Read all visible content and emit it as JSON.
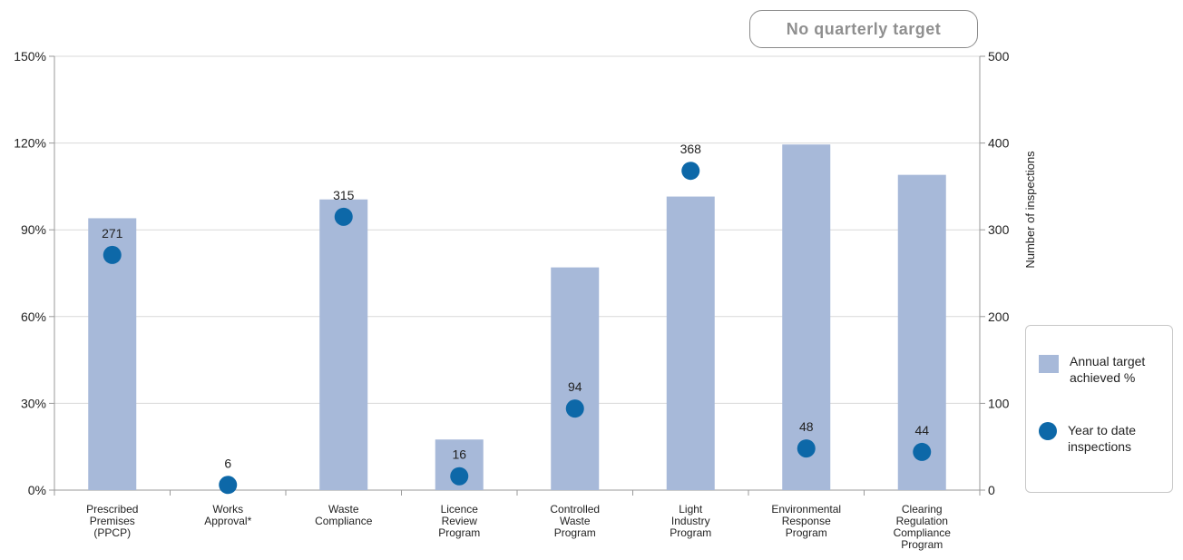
{
  "badge": {
    "label": "No quarterly target"
  },
  "legend": {
    "bar_label": "Annual target achieved %",
    "dot_label": "Year to date inspections"
  },
  "colors": {
    "bar": "#a7b9d9",
    "dot": "#0d68a8",
    "grid": "#d9d9d9",
    "axis": "#9a9a9a"
  },
  "chart_data": {
    "type": "bar",
    "categories": [
      [
        "Prescribed",
        "Premises",
        "(PPCP)"
      ],
      [
        "Works",
        "Approval*"
      ],
      [
        "Waste",
        "Compliance"
      ],
      [
        "Licence",
        "Review",
        "Program"
      ],
      [
        "Controlled",
        "Waste",
        "Program"
      ],
      [
        "Light",
        "Industry",
        "Program"
      ],
      [
        "Environmental",
        "Response",
        "Program"
      ],
      [
        "Clearing",
        "Regulation",
        "Compliance",
        "Program"
      ]
    ],
    "series": [
      {
        "name": "Annual target achieved %",
        "axis": "left",
        "kind": "bar",
        "values": [
          94,
          0,
          100.5,
          17.5,
          77,
          101.5,
          119.5,
          109
        ]
      },
      {
        "name": "Year to date inspections",
        "axis": "right",
        "kind": "point",
        "values": [
          271,
          6,
          315,
          16,
          94,
          368,
          48,
          44
        ],
        "labels": [
          "271",
          "6",
          "315",
          "16",
          "94",
          "368",
          "48",
          "44"
        ]
      }
    ],
    "y_left": {
      "min": 0,
      "max": 150,
      "ticks": [
        "0%",
        "30%",
        "60%",
        "90%",
        "120%",
        "150%"
      ],
      "tick_values": [
        0,
        30,
        60,
        90,
        120,
        150
      ]
    },
    "y_right": {
      "min": 0,
      "max": 500,
      "label": "Number of inspections",
      "ticks": [
        "0",
        "100",
        "200",
        "300",
        "400",
        "500"
      ],
      "tick_values": [
        0,
        100,
        200,
        300,
        400,
        500
      ]
    },
    "grid": true,
    "legend_position": "right"
  }
}
